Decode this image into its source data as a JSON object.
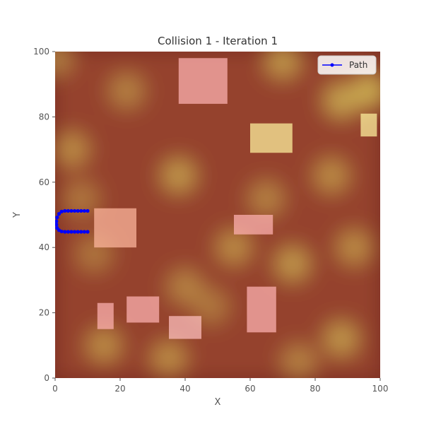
{
  "chart_data": {
    "type": "scatter",
    "title": "Collision 1 - Iteration 1",
    "xlabel": "X",
    "ylabel": "Y",
    "xlim": [
      0,
      100
    ],
    "ylim": [
      0,
      100
    ],
    "xticks": [
      0,
      20,
      40,
      60,
      80,
      100
    ],
    "yticks": [
      0,
      20,
      40,
      60,
      80,
      100
    ],
    "xtick_labels": [
      "0",
      "20",
      "40",
      "60",
      "80",
      "100"
    ],
    "ytick_labels": [
      "0",
      "20",
      "40",
      "60",
      "80",
      "100"
    ],
    "grid": false,
    "legend": {
      "position": "top-right",
      "entries": [
        "Path"
      ]
    },
    "background": "heatmap",
    "heatmap_colors": {
      "low": "#7a2e22",
      "mid": "#b55a3c",
      "high": "#d8c65a"
    },
    "heat_blobs": [
      {
        "x": 38,
        "y": 62,
        "value": 0.8
      },
      {
        "x": 5,
        "y": 70,
        "value": 0.7
      },
      {
        "x": 22,
        "y": 88,
        "value": 0.6
      },
      {
        "x": 70,
        "y": 97,
        "value": 0.8
      },
      {
        "x": 88,
        "y": 85,
        "value": 0.9
      },
      {
        "x": 97,
        "y": 88,
        "value": 1.0
      },
      {
        "x": 85,
        "y": 62,
        "value": 0.7
      },
      {
        "x": 55,
        "y": 40,
        "value": 0.7
      },
      {
        "x": 40,
        "y": 28,
        "value": 0.6
      },
      {
        "x": 12,
        "y": 38,
        "value": 0.5
      },
      {
        "x": 73,
        "y": 35,
        "value": 0.8
      },
      {
        "x": 92,
        "y": 40,
        "value": 0.7
      },
      {
        "x": 15,
        "y": 10,
        "value": 0.7
      },
      {
        "x": 35,
        "y": 6,
        "value": 0.7
      },
      {
        "x": 48,
        "y": 22,
        "value": 0.5
      },
      {
        "x": 88,
        "y": 12,
        "value": 0.8
      },
      {
        "x": 65,
        "y": 55,
        "value": 0.6
      },
      {
        "x": 0,
        "y": 98,
        "value": 0.6
      },
      {
        "x": 8,
        "y": 55,
        "value": 0.5
      },
      {
        "x": 75,
        "y": 5,
        "value": 0.6
      }
    ],
    "obstacles": [
      {
        "x": 38,
        "y": 84,
        "w": 15,
        "h": 14,
        "color": "#ffb3b3"
      },
      {
        "x": 60,
        "y": 69,
        "w": 13,
        "h": 9,
        "color": "#fff2a0"
      },
      {
        "x": 94,
        "y": 74,
        "w": 5,
        "h": 7,
        "color": "#fff2a0"
      },
      {
        "x": 12,
        "y": 40,
        "w": 13,
        "h": 12,
        "color": "#ffb8a0"
      },
      {
        "x": 55,
        "y": 44,
        "w": 12,
        "h": 6,
        "color": "#ffb3b3"
      },
      {
        "x": 13,
        "y": 15,
        "w": 5,
        "h": 8,
        "color": "#ffb3b3"
      },
      {
        "x": 22,
        "y": 17,
        "w": 10,
        "h": 8,
        "color": "#ffb3b3"
      },
      {
        "x": 35,
        "y": 12,
        "w": 10,
        "h": 7,
        "color": "#ffc0c0"
      },
      {
        "x": 59,
        "y": 14,
        "w": 9,
        "h": 14,
        "color": "#ffb3b3"
      }
    ],
    "series": [
      {
        "name": "Path",
        "color": "#0000ff",
        "x": [
          10,
          9,
          8,
          7,
          6,
          5,
          4,
          3,
          2,
          1.2,
          0.6,
          0.4,
          0.4,
          0.6,
          1.2,
          2,
          3,
          4,
          5,
          6,
          7,
          8,
          9,
          10
        ],
        "y": [
          51.2,
          51.2,
          51.2,
          51.2,
          51.2,
          51.2,
          51.2,
          51.2,
          51,
          50.3,
          49.2,
          48,
          47,
          46,
          45.3,
          44.9,
          44.8,
          44.8,
          44.8,
          44.8,
          44.8,
          44.8,
          44.8,
          44.8
        ]
      }
    ]
  }
}
